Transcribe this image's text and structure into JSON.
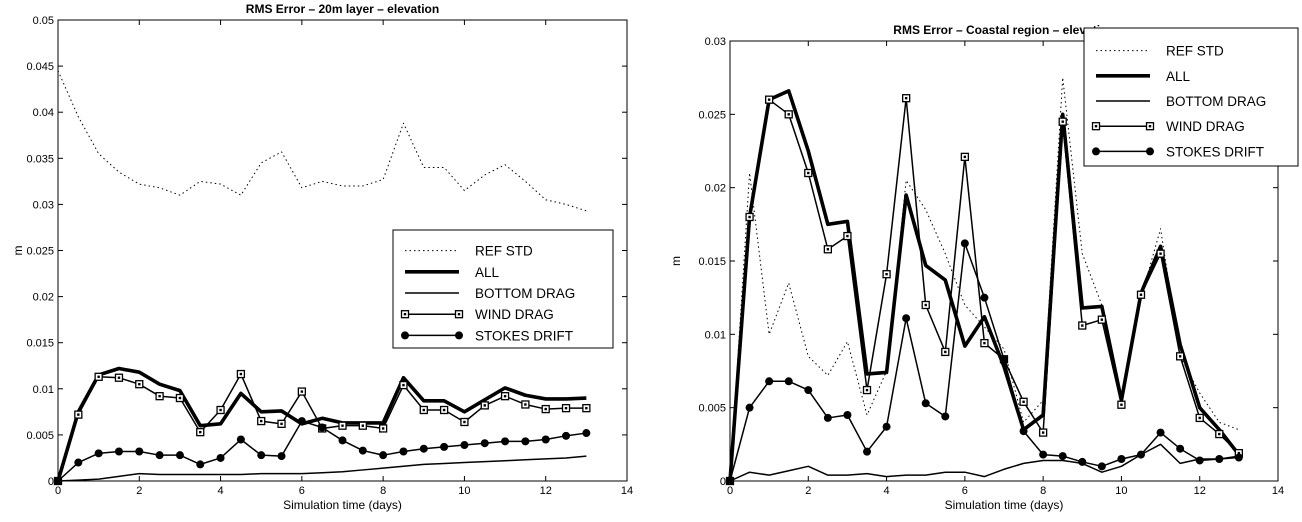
{
  "chart_data": [
    {
      "type": "line",
      "title": "RMS Error – 20m layer – elevation",
      "xlabel": "Simulation time (days)",
      "ylabel": "m",
      "xlim": [
        0,
        14
      ],
      "ylim": [
        0,
        0.05
      ],
      "xticks": [
        "0",
        "2",
        "4",
        "6",
        "8",
        "10",
        "12",
        "14"
      ],
      "yticks": [
        "0",
        "0.005",
        "0.01",
        "0.015",
        "0.02",
        "0.025",
        "0.03",
        "0.035",
        "0.04",
        "0.045",
        "0.05"
      ],
      "grid": false,
      "legend_position": "center-right",
      "series": [
        {
          "name": "REF STD",
          "style": "dotted",
          "x": [
            0,
            0.5,
            1,
            1.5,
            2,
            2.5,
            3,
            3.5,
            4,
            4.5,
            5,
            5.5,
            6,
            6.5,
            7,
            7.5,
            8,
            8.5,
            9,
            9.5,
            10,
            10.5,
            11,
            11.5,
            12,
            12.5,
            13
          ],
          "y": [
            0.0445,
            0.0395,
            0.0355,
            0.0335,
            0.0322,
            0.0318,
            0.031,
            0.0325,
            0.0322,
            0.031,
            0.0345,
            0.0357,
            0.0318,
            0.0325,
            0.032,
            0.032,
            0.0327,
            0.0388,
            0.034,
            0.034,
            0.0315,
            0.0332,
            0.0343,
            0.0325,
            0.0305,
            0.03,
            0.0293
          ]
        },
        {
          "name": "ALL",
          "style": "thick",
          "x": [
            0,
            0.5,
            1,
            1.5,
            2,
            2.5,
            3,
            3.5,
            4,
            4.5,
            5,
            5.5,
            6,
            6.5,
            7,
            7.5,
            8,
            8.5,
            9,
            9.5,
            10,
            10.5,
            11,
            11.5,
            12,
            12.5,
            13
          ],
          "y": [
            0,
            0.0075,
            0.0115,
            0.0122,
            0.0118,
            0.0105,
            0.0098,
            0.006,
            0.0062,
            0.0095,
            0.0075,
            0.0076,
            0.0062,
            0.0068,
            0.0063,
            0.0063,
            0.0063,
            0.0112,
            0.0087,
            0.0087,
            0.0075,
            0.0088,
            0.0101,
            0.0093,
            0.0089,
            0.0089,
            0.009
          ]
        },
        {
          "name": "BOTTOM DRAG",
          "style": "thin",
          "x": [
            0,
            0.5,
            1,
            1.5,
            2,
            2.5,
            3,
            3.5,
            4,
            4.5,
            5,
            5.5,
            6,
            6.5,
            7,
            7.5,
            8,
            8.5,
            9,
            9.5,
            10,
            10.5,
            11,
            11.5,
            12,
            12.5,
            13
          ],
          "y": [
            0,
            0.0001,
            0.0002,
            0.0005,
            0.0008,
            0.0007,
            0.0007,
            0.0007,
            0.0007,
            0.0007,
            0.0008,
            0.0008,
            0.0008,
            0.0009,
            0.001,
            0.0012,
            0.0014,
            0.0016,
            0.0018,
            0.0019,
            0.002,
            0.0021,
            0.0022,
            0.0023,
            0.0024,
            0.0025,
            0.0027
          ]
        },
        {
          "name": "WIND DRAG",
          "style": "square",
          "x": [
            0,
            0.5,
            1,
            1.5,
            2,
            2.5,
            3,
            3.5,
            4,
            4.5,
            5,
            5.5,
            6,
            6.5,
            7,
            7.5,
            8,
            8.5,
            9,
            9.5,
            10,
            10.5,
            11,
            11.5,
            12,
            12.5,
            13
          ],
          "y": [
            0,
            0.0072,
            0.0113,
            0.0112,
            0.0105,
            0.0092,
            0.009,
            0.0053,
            0.0077,
            0.0116,
            0.0065,
            0.0062,
            0.0097,
            0.0057,
            0.006,
            0.006,
            0.0057,
            0.0104,
            0.0077,
            0.0077,
            0.0064,
            0.0082,
            0.0092,
            0.0083,
            0.0078,
            0.0079,
            0.0079
          ]
        },
        {
          "name": "STOKES DRIFT",
          "style": "dot",
          "x": [
            0,
            0.5,
            1,
            1.5,
            2,
            2.5,
            3,
            3.5,
            4,
            4.5,
            5,
            5.5,
            6,
            6.5,
            7,
            7.5,
            8,
            8.5,
            9,
            9.5,
            10,
            10.5,
            11,
            11.5,
            12,
            12.5,
            13
          ],
          "y": [
            0,
            0.002,
            0.003,
            0.0032,
            0.0032,
            0.0028,
            0.0028,
            0.0018,
            0.0025,
            0.0045,
            0.0028,
            0.0027,
            0.0065,
            0.0058,
            0.0044,
            0.0033,
            0.0028,
            0.0032,
            0.0035,
            0.0037,
            0.0039,
            0.0041,
            0.0043,
            0.0043,
            0.0045,
            0.0049,
            0.0052
          ]
        }
      ]
    },
    {
      "type": "line",
      "title": "RMS Error – Coastal region – elevation",
      "xlabel": "Simulation time (days)",
      "ylabel": "m",
      "xlim": [
        0,
        14
      ],
      "ylim": [
        0,
        0.03
      ],
      "xticks": [
        "0",
        "2",
        "4",
        "6",
        "8",
        "10",
        "12",
        "14"
      ],
      "yticks": [
        "0",
        "0.005",
        "0.01",
        "0.015",
        "0.02",
        "0.025",
        "0.03"
      ],
      "grid": false,
      "legend_position": "top-right",
      "series": [
        {
          "name": "REF STD",
          "style": "dotted",
          "x": [
            0,
            0.5,
            1,
            1.5,
            2,
            2.5,
            3,
            3.5,
            4,
            4.5,
            5,
            5.5,
            6,
            6.5,
            7,
            7.5,
            8,
            8.5,
            9,
            9.5,
            10,
            10.5,
            11,
            11.5,
            12,
            12.5,
            13
          ],
          "y": [
            0,
            0.021,
            0.01,
            0.0135,
            0.0085,
            0.0072,
            0.0095,
            0.0045,
            0.0075,
            0.0205,
            0.0185,
            0.0155,
            0.012,
            0.0105,
            0.009,
            0.004,
            0.0055,
            0.0275,
            0.0155,
            0.012,
            0.0058,
            0.0125,
            0.0172,
            0.0085,
            0.006,
            0.004,
            0.0035
          ]
        },
        {
          "name": "ALL",
          "style": "thick",
          "x": [
            0,
            0.5,
            1,
            1.5,
            2,
            2.5,
            3,
            3.5,
            4,
            4.5,
            5,
            5.5,
            6,
            6.5,
            7,
            7.5,
            8,
            8.5,
            9,
            9.5,
            10,
            10.5,
            11,
            11.5,
            12,
            12.5,
            13
          ],
          "y": [
            0,
            0.018,
            0.026,
            0.0266,
            0.0225,
            0.0175,
            0.0177,
            0.0073,
            0.0074,
            0.0195,
            0.0147,
            0.0137,
            0.0092,
            0.0112,
            0.0078,
            0.0035,
            0.0045,
            0.025,
            0.0118,
            0.0119,
            0.0055,
            0.0128,
            0.016,
            0.0093,
            0.005,
            0.0035,
            0.0018
          ]
        },
        {
          "name": "BOTTOM DRAG",
          "style": "thin",
          "x": [
            0,
            0.5,
            1,
            1.5,
            2,
            2.5,
            3,
            3.5,
            4,
            4.5,
            5,
            5.5,
            6,
            6.5,
            7,
            7.5,
            8,
            8.5,
            9,
            9.5,
            10,
            10.5,
            11,
            11.5,
            12,
            12.5,
            13
          ],
          "y": [
            0,
            0.0006,
            0.0004,
            0.0007,
            0.001,
            0.0004,
            0.0004,
            0.0005,
            0.0003,
            0.0004,
            0.0004,
            0.0006,
            0.0006,
            0.0003,
            0.0008,
            0.0012,
            0.0014,
            0.0014,
            0.0012,
            0.0006,
            0.001,
            0.0018,
            0.0025,
            0.0012,
            0.0015,
            0.0015,
            0.0017
          ]
        },
        {
          "name": "WIND DRAG",
          "style": "square",
          "x": [
            0,
            0.5,
            1,
            1.5,
            2,
            2.5,
            3,
            3.5,
            4,
            4.5,
            5,
            5.5,
            6,
            6.5,
            7,
            7.5,
            8,
            8.5,
            9,
            9.5,
            10,
            10.5,
            11,
            11.5,
            12,
            12.5,
            13
          ],
          "y": [
            0,
            0.018,
            0.026,
            0.025,
            0.021,
            0.0158,
            0.0167,
            0.0062,
            0.0141,
            0.0261,
            0.012,
            0.0088,
            0.0221,
            0.0094,
            0.0083,
            0.0054,
            0.0033,
            0.0245,
            0.0106,
            0.011,
            0.0052,
            0.0127,
            0.0155,
            0.0085,
            0.0043,
            0.0032,
            0.0019
          ]
        },
        {
          "name": "STOKES DRIFT",
          "style": "dot",
          "x": [
            0,
            0.5,
            1,
            1.5,
            2,
            2.5,
            3,
            3.5,
            4,
            4.5,
            5,
            5.5,
            6,
            6.5,
            7,
            7.5,
            8,
            8.5,
            9,
            9.5,
            10,
            10.5,
            11,
            11.5,
            12,
            12.5,
            13
          ],
          "y": [
            0,
            0.005,
            0.0068,
            0.0068,
            0.0062,
            0.0043,
            0.0045,
            0.002,
            0.0037,
            0.0111,
            0.0053,
            0.0044,
            0.0162,
            0.0125,
            0.0083,
            0.0034,
            0.0018,
            0.0017,
            0.0013,
            0.001,
            0.0015,
            0.0018,
            0.0033,
            0.0022,
            0.0014,
            0.0015,
            0.0016
          ]
        }
      ]
    }
  ]
}
